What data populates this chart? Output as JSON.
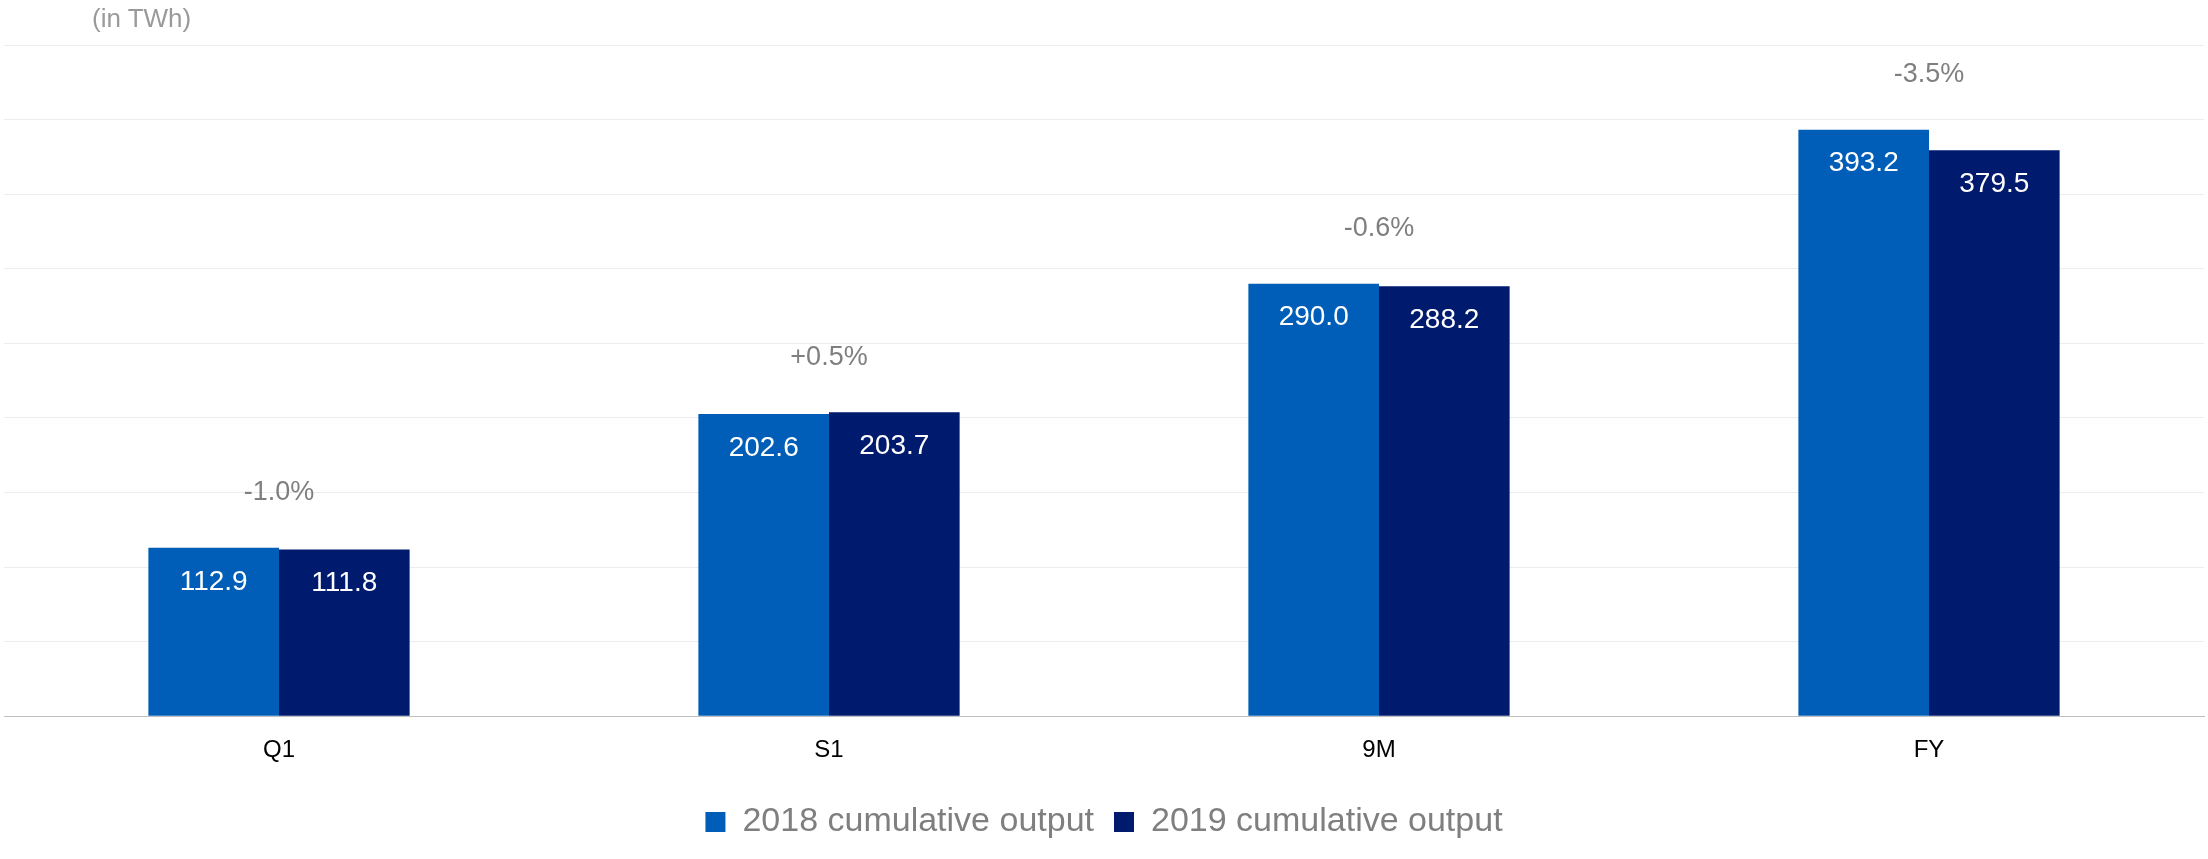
{
  "chart_data": {
    "type": "bar",
    "ylabel": "(in TWh)",
    "categories": [
      "Q1",
      "S1",
      "9M",
      "FY"
    ],
    "series": [
      {
        "name": "2018 cumulative output",
        "color": "#005eb8",
        "values": [
          112.9,
          202.6,
          290.0,
          393.2
        ],
        "value_labels": [
          "112.9",
          "202.6",
          "290.0",
          "393.2"
        ]
      },
      {
        "name": "2019 cumulative output",
        "color": "#001a6e",
        "values": [
          111.8,
          203.7,
          288.2,
          379.5
        ],
        "value_labels": [
          "111.8",
          "203.7",
          "288.2",
          "379.5"
        ]
      }
    ],
    "ylim": [
      0,
      450
    ],
    "yticks": [
      {
        "value": 0,
        "label": null
      },
      {
        "value": 50,
        "label": null
      },
      {
        "value": 100,
        "label": null
      },
      {
        "value": 150,
        "label": null
      },
      {
        "value": 200,
        "label": null
      },
      {
        "value": 250,
        "label": null
      },
      {
        "value": 300,
        "label": null
      },
      {
        "value": 350,
        "label": null
      },
      {
        "value": 400,
        "label": null
      },
      {
        "value": 450,
        "label": null
      }
    ],
    "tick_labels": "x",
    "grid": "y",
    "legend": "bottom",
    "annotations": [
      "-1.0%",
      "+0.5%",
      "-0.6%",
      "-3.5%"
    ]
  }
}
